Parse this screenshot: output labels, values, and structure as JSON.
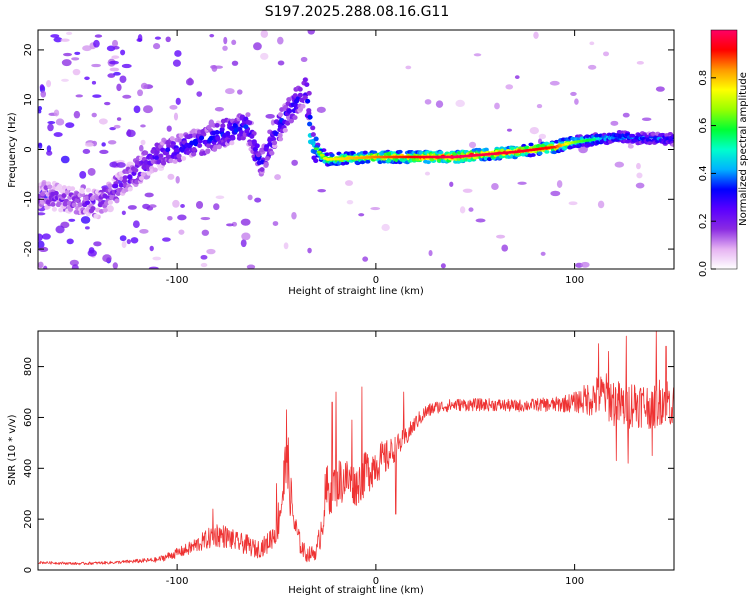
{
  "title": "S197.2025.288.08.16.G11",
  "chart_data": [
    {
      "type": "heatmap",
      "xlabel": "Height of straight line (km)",
      "ylabel": "Frequency (Hz)",
      "xlim": [
        -170,
        150
      ],
      "ylim": [
        -24,
        24
      ],
      "xticks": [
        -100,
        0,
        100
      ],
      "yticks": [
        -20,
        -10,
        0,
        10,
        20
      ],
      "colorbar": {
        "label": "Normalized spectral amplitude",
        "range": [
          0.0,
          1.0
        ],
        "ticks": [
          "0.0",
          "0.2",
          "0.4",
          "0.6",
          "0.8"
        ],
        "tick_values": [
          0.0,
          0.2,
          0.4,
          0.6,
          0.8
        ],
        "colors": [
          "#ffffff",
          "#e6b3f2",
          "#8a2be2",
          "#5a00ff",
          "#0000ff",
          "#00b3ff",
          "#00ffcc",
          "#00ff33",
          "#99ff00",
          "#ffff00",
          "#ff9900",
          "#ff0000",
          "#ff0066"
        ]
      },
      "ridge": [
        {
          "x": -170,
          "f": -9,
          "amp": 0.15
        },
        {
          "x": -140,
          "f": -11,
          "amp": 0.2
        },
        {
          "x": -110,
          "f": -1,
          "amp": 0.25
        },
        {
          "x": -85,
          "f": 2,
          "amp": 0.32
        },
        {
          "x": -65,
          "f": 5,
          "amp": 0.32
        },
        {
          "x": -58,
          "f": -3,
          "amp": 0.3
        },
        {
          "x": -48,
          "f": 5,
          "amp": 0.32
        },
        {
          "x": -35,
          "f": 12,
          "amp": 0.3
        },
        {
          "x": -32,
          "f": 1,
          "amp": 0.5
        },
        {
          "x": -25,
          "f": -2,
          "amp": 0.7
        },
        {
          "x": 0,
          "f": -1.5,
          "amp": 0.8
        },
        {
          "x": 40,
          "f": -1.5,
          "amp": 0.95
        },
        {
          "x": 70,
          "f": -0.5,
          "amp": 0.9
        },
        {
          "x": 90,
          "f": 0.5,
          "amp": 0.85
        },
        {
          "x": 100,
          "f": 1.5,
          "amp": 0.6
        },
        {
          "x": 120,
          "f": 2.5,
          "amp": 0.4
        },
        {
          "x": 150,
          "f": 2,
          "amp": 0.35
        }
      ]
    },
    {
      "type": "line",
      "xlabel": "Height of straight line (km)",
      "ylabel": "SNR (10 * v/v)",
      "xlim": [
        -170,
        150
      ],
      "ylim": [
        0,
        940
      ],
      "xticks": [
        -100,
        0,
        100
      ],
      "yticks": [
        0,
        200,
        400,
        600,
        800
      ],
      "series": [
        {
          "name": "SNR",
          "color": "#ee3333",
          "x": [
            -170,
            -150,
            -130,
            -110,
            -95,
            -85,
            -80,
            -75,
            -70,
            -65,
            -60,
            -55,
            -50,
            -47,
            -45,
            -43,
            -41,
            -38,
            -35,
            -30,
            -28,
            -25,
            -22,
            -20,
            -15,
            -10,
            -5,
            0,
            5,
            10,
            15,
            20,
            25,
            30,
            40,
            50,
            60,
            70,
            80,
            90,
            100,
            105,
            110,
            115,
            120,
            125,
            130,
            135,
            140,
            145,
            150
          ],
          "y": [
            30,
            25,
            30,
            40,
            80,
            120,
            140,
            130,
            110,
            100,
            80,
            100,
            160,
            300,
            420,
            300,
            180,
            100,
            60,
            70,
            140,
            300,
            330,
            340,
            360,
            330,
            380,
            420,
            440,
            480,
            520,
            580,
            620,
            640,
            650,
            650,
            650,
            645,
            650,
            650,
            660,
            670,
            680,
            690,
            660,
            640,
            660,
            650,
            640,
            680,
            640
          ],
          "noise": [
            5,
            5,
            6,
            10,
            25,
            40,
            50,
            45,
            40,
            40,
            35,
            40,
            60,
            150,
            120,
            100,
            60,
            40,
            30,
            30,
            60,
            120,
            100,
            100,
            90,
            80,
            90,
            80,
            70,
            50,
            40,
            30,
            30,
            25,
            25,
            25,
            25,
            25,
            25,
            30,
            40,
            60,
            80,
            90,
            100,
            90,
            100,
            90,
            90,
            100,
            90
          ],
          "spikes": [
            {
              "x": -82,
              "y": 240
            },
            {
              "x": -50,
              "y": 340
            },
            {
              "x": -45,
              "y": 630
            },
            {
              "x": -44,
              "y": 520
            },
            {
              "x": -22,
              "y": 660
            },
            {
              "x": -20,
              "y": 700
            },
            {
              "x": -12,
              "y": 590
            },
            {
              "x": -7,
              "y": 720
            },
            {
              "x": -5,
              "y": 460
            },
            {
              "x": 10,
              "y": 220
            },
            {
              "x": 14,
              "y": 700
            },
            {
              "x": 112,
              "y": 890
            },
            {
              "x": 117,
              "y": 860
            },
            {
              "x": 126,
              "y": 920
            },
            {
              "x": 141,
              "y": 940
            },
            {
              "x": 146,
              "y": 880
            },
            {
              "x": 139,
              "y": 450
            },
            {
              "x": 127,
              "y": 420
            },
            {
              "x": 121,
              "y": 430
            }
          ]
        }
      ]
    }
  ]
}
